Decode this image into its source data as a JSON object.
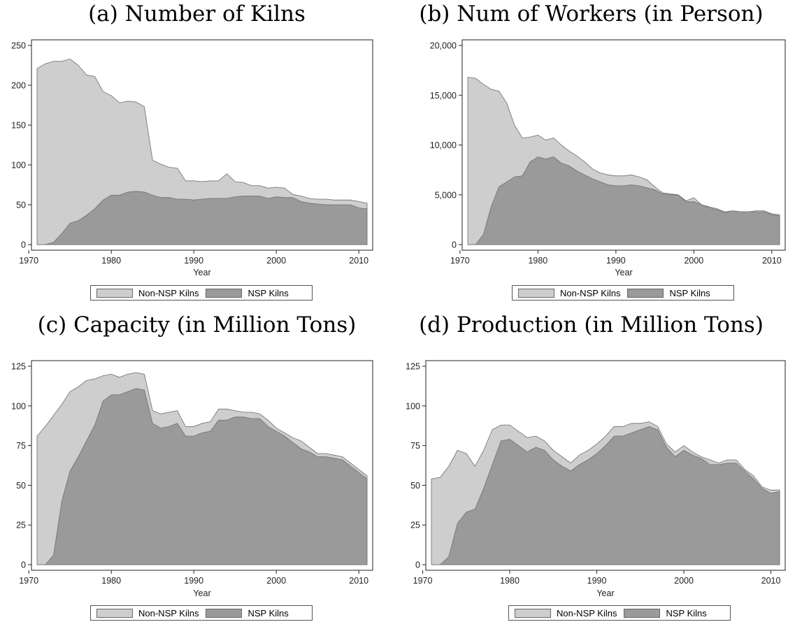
{
  "colors": {
    "non_nsp": "#cecece",
    "nsp": "#9a9a9a",
    "edge": "#6e6e6e"
  },
  "chart_data": [
    {
      "type": "area",
      "title": "(a) Number of Kilns",
      "xlabel": "Year",
      "ylabel": "",
      "xlim": [
        1971,
        2011
      ],
      "ylim": [
        0,
        250
      ],
      "xticks": [
        1970,
        1980,
        1990,
        2000,
        2010
      ],
      "xtick_labels": [
        "1970",
        "1980",
        "1990",
        "2000",
        "2010"
      ],
      "yticks": [
        0,
        50,
        100,
        150,
        200,
        250
      ],
      "ytick_labels": [
        "0",
        "50",
        "100",
        "150",
        "200",
        "250"
      ],
      "legend": [
        "Non-NSP Kilns",
        "NSP Kilns"
      ],
      "legend_position": "bottom",
      "x": [
        1971,
        1972,
        1973,
        1974,
        1975,
        1976,
        1977,
        1978,
        1979,
        1980,
        1981,
        1982,
        1983,
        1984,
        1985,
        1986,
        1987,
        1988,
        1989,
        1990,
        1991,
        1992,
        1993,
        1994,
        1995,
        1996,
        1997,
        1998,
        1999,
        2000,
        2001,
        2002,
        2003,
        2004,
        2005,
        2006,
        2007,
        2008,
        2009,
        2010,
        2011
      ],
      "series": [
        {
          "name": "Non-NSP Kilns",
          "values": [
            221,
            227,
            230,
            230,
            233,
            225,
            213,
            211,
            192,
            187,
            178,
            180,
            179,
            173,
            106,
            101,
            97,
            96,
            80,
            80,
            79,
            80,
            80,
            89,
            79,
            78,
            74,
            74,
            71,
            72,
            71,
            63,
            61,
            58,
            57,
            57,
            56,
            56,
            56,
            54,
            52
          ]
        },
        {
          "name": "NSP Kilns",
          "values": [
            0,
            0,
            3,
            14,
            27,
            30,
            37,
            45,
            56,
            62,
            62,
            66,
            67,
            66,
            62,
            59,
            59,
            57,
            57,
            56,
            57,
            58,
            58,
            58,
            60,
            61,
            61,
            61,
            58,
            60,
            59,
            59,
            54,
            52,
            51,
            50,
            50,
            50,
            50,
            46,
            45
          ]
        }
      ]
    },
    {
      "type": "area",
      "title": "(b) Num of Workers (in Person)",
      "xlabel": "Year",
      "ylabel": "",
      "xlim": [
        1971,
        2011
      ],
      "ylim": [
        0,
        20000
      ],
      "xticks": [
        1970,
        1980,
        1990,
        2000,
        2010
      ],
      "xtick_labels": [
        "1970",
        "1980",
        "1990",
        "2000",
        "2010"
      ],
      "yticks": [
        0,
        5000,
        10000,
        15000,
        20000
      ],
      "ytick_labels": [
        "0",
        "5,000",
        "10,000",
        "15,000",
        "20,000"
      ],
      "legend": [
        "Non-NSP Kilns",
        "NSP Kilns"
      ],
      "legend_position": "bottom",
      "x": [
        1971,
        1972,
        1973,
        1974,
        1975,
        1976,
        1977,
        1978,
        1979,
        1980,
        1981,
        1982,
        1983,
        1984,
        1985,
        1986,
        1987,
        1988,
        1989,
        1990,
        1991,
        1992,
        1993,
        1994,
        1995,
        1996,
        1997,
        1998,
        1999,
        2000,
        2001,
        2002,
        2003,
        2004,
        2005,
        2006,
        2007,
        2008,
        2009,
        2010,
        2011
      ],
      "series": [
        {
          "name": "Non-NSP Kilns",
          "values": [
            16800,
            16700,
            16100,
            15600,
            15400,
            14200,
            12000,
            10700,
            10800,
            11000,
            10500,
            10700,
            10000,
            9400,
            8900,
            8300,
            7600,
            7200,
            7000,
            6900,
            6900,
            7000,
            6800,
            6500,
            5800,
            5200,
            5100,
            5000,
            4400,
            4700,
            4000,
            3800,
            3600,
            3300,
            3400,
            3300,
            3300,
            3400,
            3400,
            3100,
            3000
          ]
        },
        {
          "name": "NSP Kilns",
          "values": [
            0,
            0,
            1000,
            3800,
            5800,
            6300,
            6800,
            6900,
            8300,
            8800,
            8600,
            8800,
            8200,
            7900,
            7400,
            7000,
            6600,
            6300,
            6000,
            5900,
            5900,
            6000,
            5900,
            5700,
            5500,
            5100,
            5000,
            5000,
            4300,
            4300,
            4000,
            3700,
            3500,
            3200,
            3400,
            3300,
            3300,
            3300,
            3300,
            3000,
            2900
          ]
        }
      ]
    },
    {
      "type": "area",
      "title": "(c) Capacity (in Million Tons)",
      "xlabel": "Year",
      "ylabel": "",
      "xlim": [
        1971,
        2011
      ],
      "ylim": [
        0,
        125
      ],
      "xticks": [
        1970,
        1980,
        1990,
        2000,
        2010
      ],
      "xtick_labels": [
        "1970",
        "1980",
        "1990",
        "2000",
        "2010"
      ],
      "yticks": [
        0,
        25,
        50,
        75,
        100,
        125
      ],
      "ytick_labels": [
        "0",
        "25",
        "50",
        "75",
        "100",
        "125"
      ],
      "legend": [
        "Non-NSP Kilns",
        "NSP Kilns"
      ],
      "legend_position": "bottom",
      "x": [
        1971,
        1972,
        1973,
        1974,
        1975,
        1976,
        1977,
        1978,
        1979,
        1980,
        1981,
        1982,
        1983,
        1984,
        1985,
        1986,
        1987,
        1988,
        1989,
        1990,
        1991,
        1992,
        1993,
        1994,
        1995,
        1996,
        1997,
        1998,
        1999,
        2000,
        2001,
        2002,
        2003,
        2004,
        2005,
        2006,
        2007,
        2008,
        2009,
        2010,
        2011
      ],
      "series": [
        {
          "name": "Non-NSP Kilns",
          "values": [
            81,
            87,
            94,
            101,
            109,
            112,
            116,
            117,
            119,
            120,
            118,
            120,
            121,
            120,
            97,
            95,
            96,
            97,
            87,
            87,
            89,
            90,
            98,
            98,
            97,
            96,
            96,
            95,
            91,
            86,
            83,
            80,
            78,
            74,
            70,
            70,
            69,
            68,
            64,
            60,
            56
          ]
        },
        {
          "name": "NSP Kilns",
          "values": [
            0,
            0,
            6,
            40,
            59,
            68,
            78,
            88,
            103,
            107,
            107,
            109,
            111,
            110,
            89,
            86,
            87,
            89,
            81,
            81,
            83,
            84,
            91,
            91,
            93,
            93,
            92,
            92,
            87,
            84,
            81,
            77,
            73,
            71,
            68,
            68,
            67,
            66,
            62,
            58,
            54
          ]
        }
      ]
    },
    {
      "type": "area",
      "title": "(d) Production (in Million Tons)",
      "xlabel": "Year",
      "ylabel": "",
      "xlim": [
        1971,
        2011
      ],
      "ylim": [
        0,
        125
      ],
      "xticks": [
        1970,
        1980,
        1990,
        2000,
        2010
      ],
      "xtick_labels": [
        "1970",
        "1980",
        "1990",
        "2000",
        "2010"
      ],
      "yticks": [
        0,
        25,
        50,
        75,
        100,
        125
      ],
      "ytick_labels": [
        "0",
        "25",
        "50",
        "75",
        "100",
        "125"
      ],
      "legend": [
        "Non-NSP Kilns",
        "NSP Kilns"
      ],
      "legend_position": "bottom",
      "x": [
        1971,
        1972,
        1973,
        1974,
        1975,
        1976,
        1977,
        1978,
        1979,
        1980,
        1981,
        1982,
        1983,
        1984,
        1985,
        1986,
        1987,
        1988,
        1989,
        1990,
        1991,
        1992,
        1993,
        1994,
        1995,
        1996,
        1997,
        1998,
        1999,
        2000,
        2001,
        2002,
        2003,
        2004,
        2005,
        2006,
        2007,
        2008,
        2009,
        2010,
        2011
      ],
      "series": [
        {
          "name": "Non-NSP Kilns",
          "values": [
            54,
            55,
            62,
            72,
            70,
            62,
            72,
            85,
            88,
            88,
            84,
            80,
            81,
            78,
            72,
            68,
            64,
            69,
            72,
            76,
            81,
            87,
            87,
            89,
            89,
            90,
            87,
            76,
            71,
            75,
            71,
            68,
            66,
            64,
            66,
            66,
            60,
            56,
            49,
            47,
            47
          ]
        },
        {
          "name": "NSP Kilns",
          "values": [
            0,
            0,
            5,
            26,
            33,
            35,
            48,
            63,
            78,
            79,
            75,
            71,
            74,
            72,
            66,
            62,
            59,
            63,
            66,
            70,
            75,
            81,
            81,
            83,
            85,
            87,
            85,
            74,
            68,
            72,
            69,
            67,
            63,
            63,
            64,
            64,
            59,
            54,
            48,
            45,
            46
          ]
        }
      ]
    }
  ]
}
